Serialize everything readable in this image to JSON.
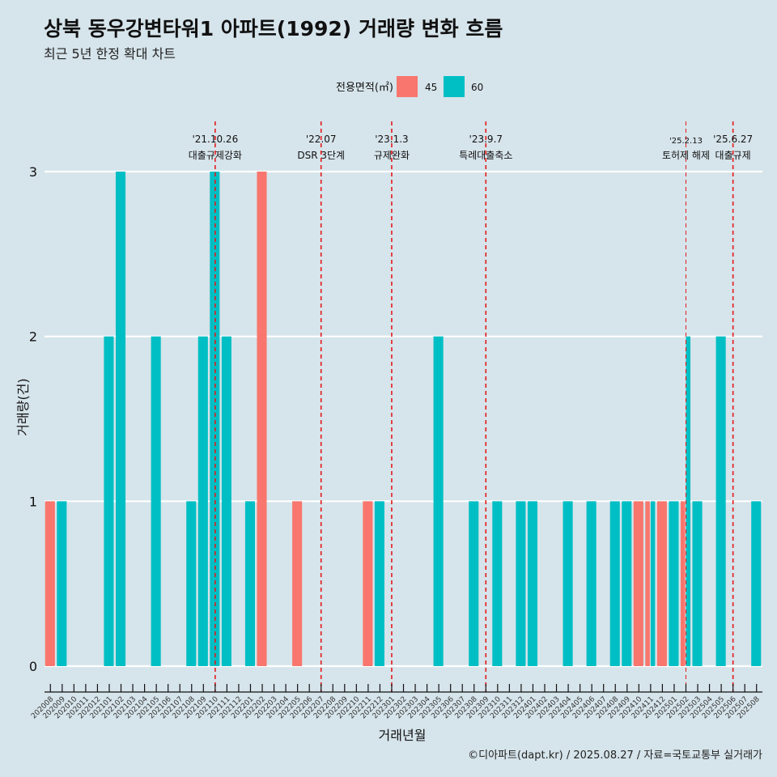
{
  "title": "상북 동우강변타워1 아파트(1992) 거래량 변화 흐름",
  "subtitle": "최근 5년 한정 확대 차트",
  "caption": "©디아파트(dapt.kr) / 2025.08.27 / 자료=국토교통부 실거래가",
  "colors": {
    "s45": "#f8766d",
    "s60": "#00bfc4",
    "event_line": "#e41a1c",
    "grid": "#ffffff",
    "background": "#d6e4eb"
  },
  "chart_data": {
    "type": "bar",
    "title": "상북 동우강변타워1 아파트(1992) 거래량 변화 흐름",
    "subtitle": "최근 5년 한정 확대 차트",
    "xlabel": "거래년월",
    "ylabel": "거래량(건)",
    "ylim": [
      0,
      3
    ],
    "yticks": [
      0,
      1,
      2,
      3
    ],
    "grid": true,
    "legend": {
      "title": "전용면적(㎡)",
      "position": "top"
    },
    "categories": [
      "202008",
      "202009",
      "202010",
      "202011",
      "202012",
      "202101",
      "202102",
      "202103",
      "202104",
      "202105",
      "202106",
      "202107",
      "202108",
      "202109",
      "202110",
      "202111",
      "202112",
      "202201",
      "202202",
      "202203",
      "202204",
      "202205",
      "202206",
      "202207",
      "202208",
      "202209",
      "202210",
      "202211",
      "202212",
      "202301",
      "202302",
      "202303",
      "202304",
      "202305",
      "202306",
      "202307",
      "202308",
      "202309",
      "202310",
      "202311",
      "202312",
      "202401",
      "202402",
      "202403",
      "202404",
      "202405",
      "202406",
      "202407",
      "202408",
      "202409",
      "202410",
      "202411",
      "202412",
      "202501",
      "202502",
      "202503",
      "202504",
      "202505",
      "202506",
      "202507",
      "202508"
    ],
    "series": [
      {
        "name": "45",
        "color": "#f8766d",
        "values": [
          1,
          0,
          0,
          0,
          0,
          0,
          0,
          0,
          0,
          0,
          0,
          0,
          0,
          0,
          0,
          0,
          0,
          0,
          3,
          0,
          0,
          1,
          0,
          0,
          0,
          0,
          0,
          1,
          0,
          0,
          0,
          0,
          0,
          0,
          0,
          0,
          0,
          0,
          0,
          0,
          0,
          0,
          0,
          0,
          0,
          0,
          0,
          0,
          0,
          0,
          1,
          1,
          1,
          0,
          1,
          0,
          0,
          0,
          0,
          0,
          0
        ]
      },
      {
        "name": "60",
        "color": "#00bfc4",
        "values": [
          0,
          1,
          0,
          0,
          0,
          2,
          3,
          0,
          0,
          2,
          0,
          0,
          1,
          2,
          3,
          2,
          0,
          1,
          0,
          0,
          0,
          0,
          0,
          0,
          0,
          0,
          0,
          0,
          1,
          0,
          0,
          0,
          0,
          2,
          0,
          0,
          1,
          0,
          1,
          0,
          1,
          1,
          0,
          0,
          1,
          0,
          1,
          0,
          1,
          1,
          0,
          1,
          0,
          1,
          2,
          1,
          0,
          2,
          0,
          0,
          1
        ]
      }
    ],
    "events": [
      {
        "date": "'21.10.26",
        "label": "대출규제강화",
        "category": "202110",
        "small": false
      },
      {
        "date": "'22.07",
        "label": "DSR 3단계",
        "category": "202207",
        "small": false
      },
      {
        "date": "'23.1.3",
        "label": "규제완화",
        "category": "202301",
        "small": false
      },
      {
        "date": "'23.9.7",
        "label": "특례대출축소",
        "category": "202309",
        "small": false
      },
      {
        "date": "'25.2.13",
        "label": "토허제 해제",
        "category": "202502",
        "small": true
      },
      {
        "date": "'25.6.27",
        "label": "대출규제",
        "category": "202506",
        "small": false
      }
    ]
  }
}
